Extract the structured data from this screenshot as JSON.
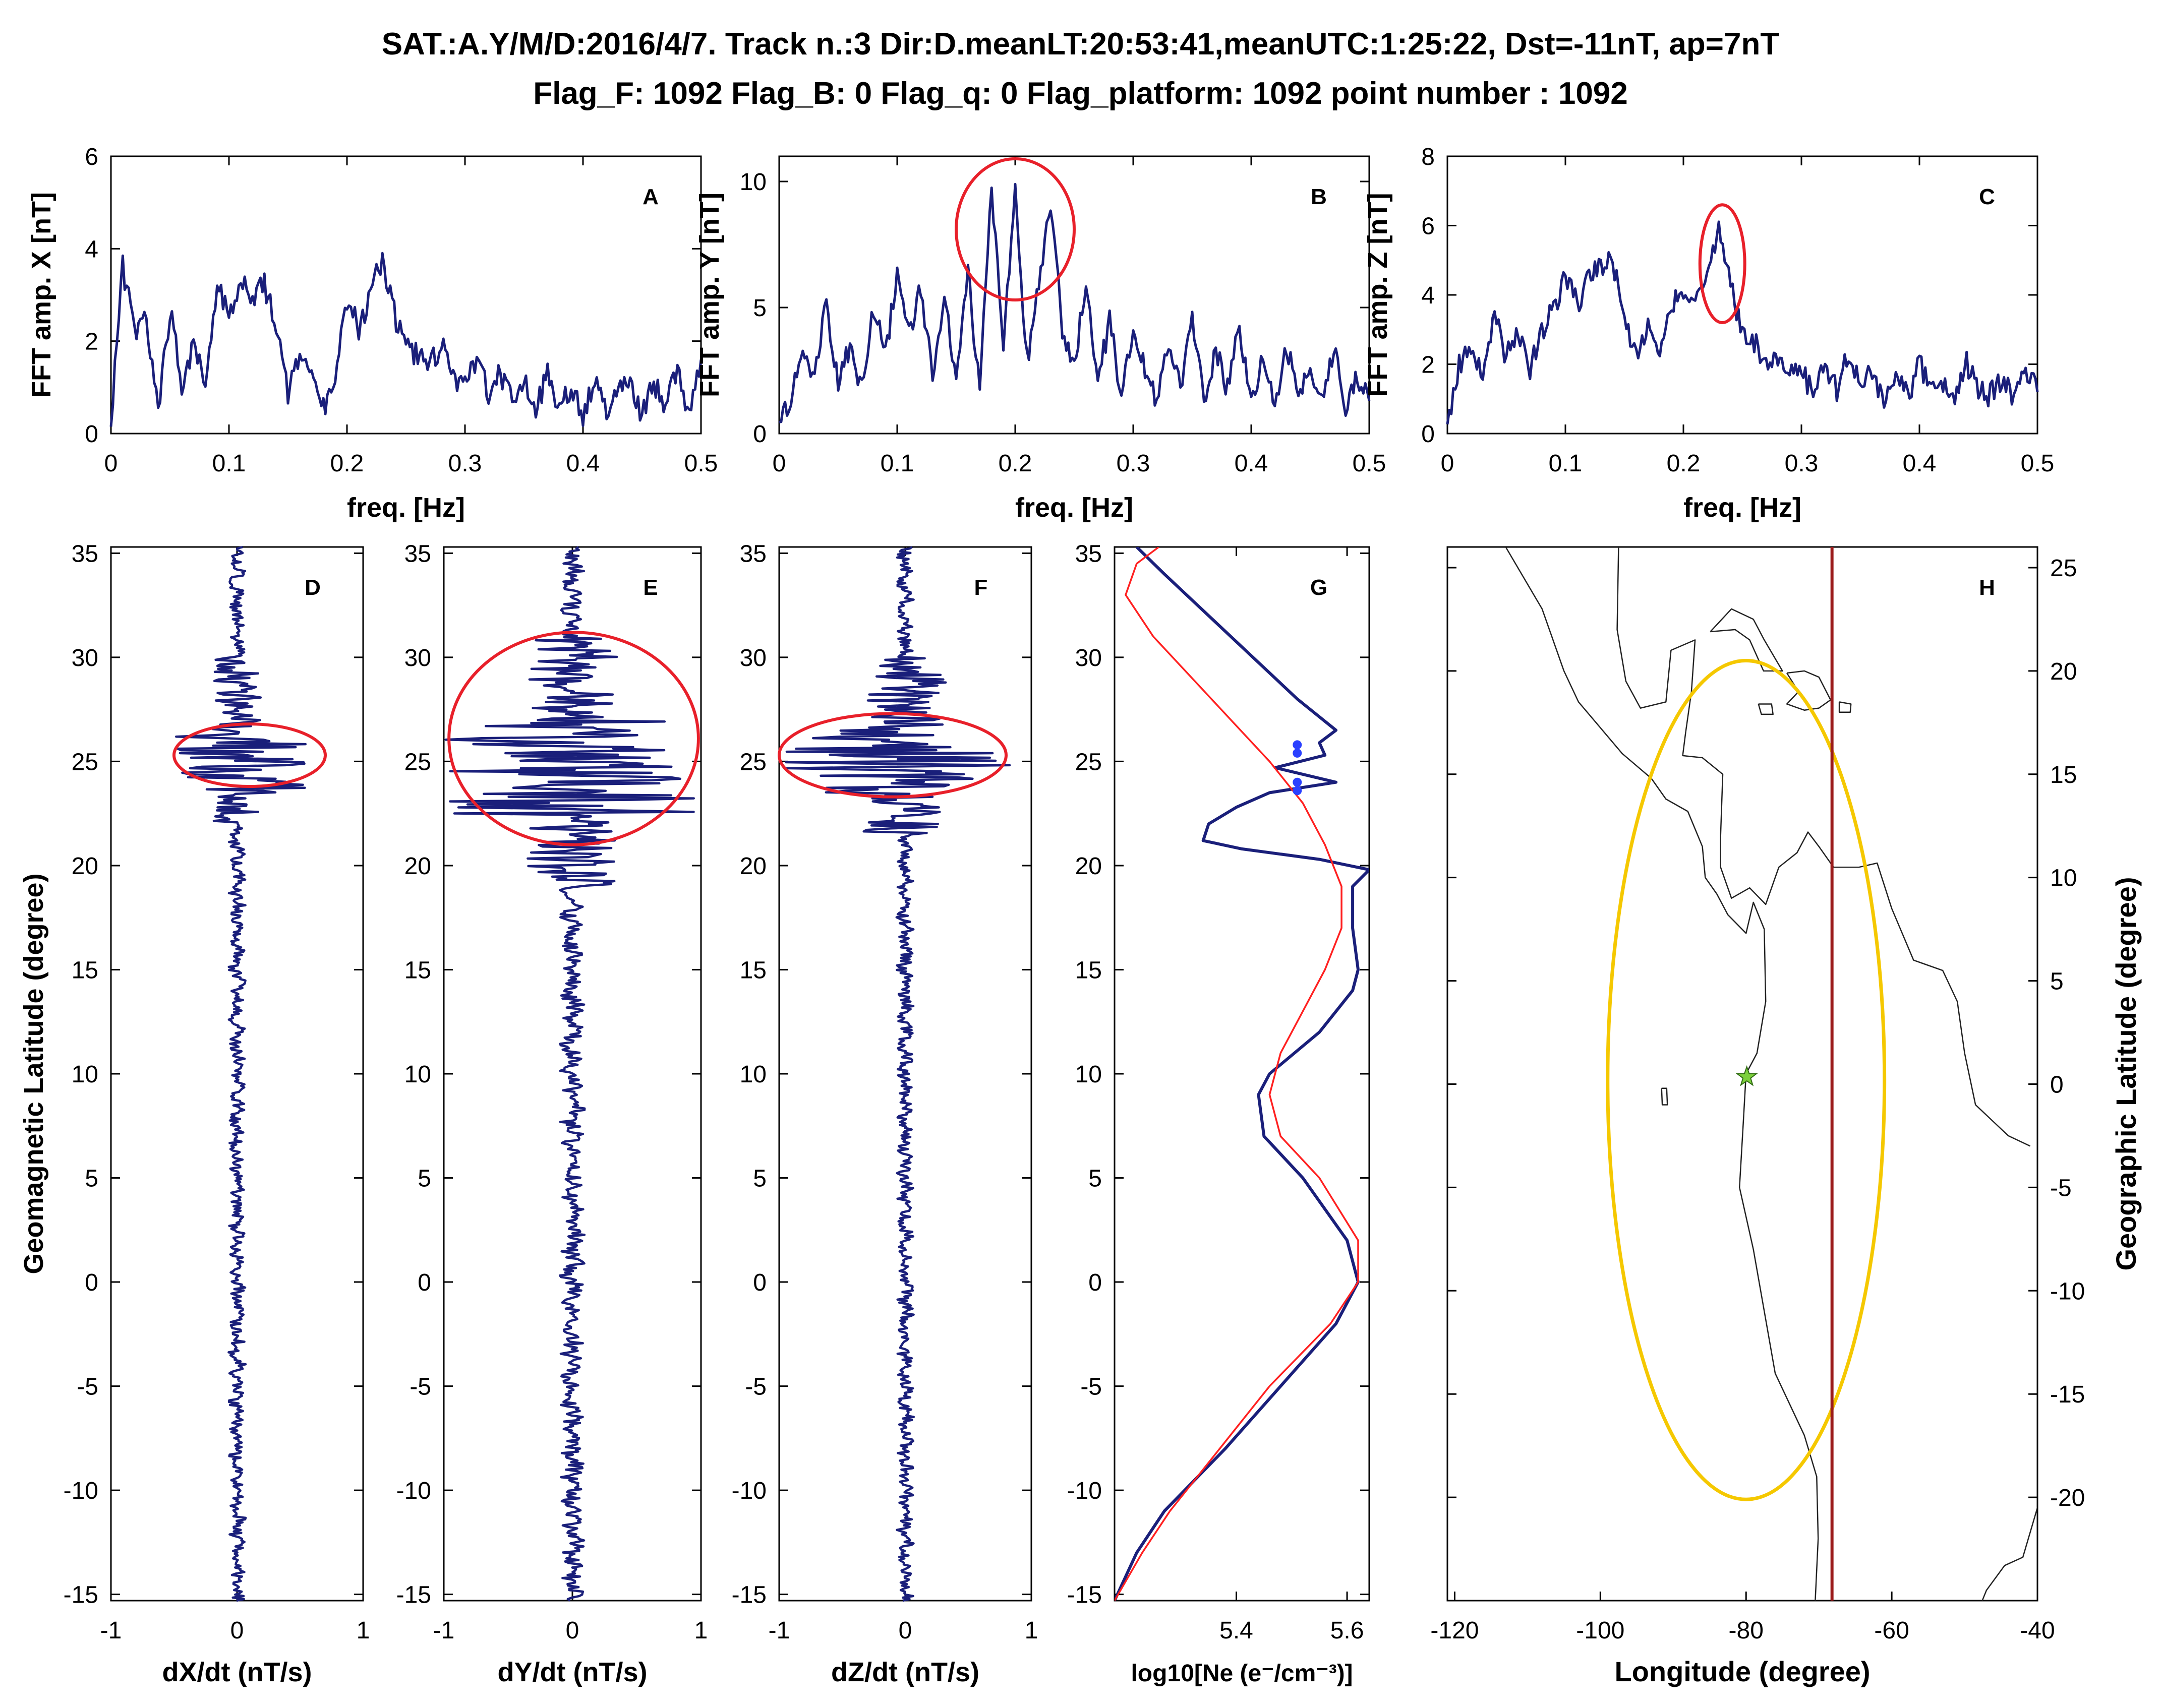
{
  "title_line1": "SAT.:A.Y/M/D:2016/4/7. Track n.:3 Dir:D.meanLT:20:53:41,meanUTC:1:25:22, Dst=-11nT, ap=7nT",
  "title_line2": "Flag_F: 1092 Flag_B: 0 Flag_q: 0 Flag_platform: 1092 point number : 1092",
  "colors": {
    "trace": "#1a1f7a",
    "model": "#ff2020",
    "highlight": "#e8202a",
    "epicenter_zone": "#f5c800",
    "track": "#9b1b1b",
    "coast": "#222222"
  },
  "chart_data": [
    {
      "id": "A",
      "type": "line",
      "panel_label": "A",
      "xlabel": "freq. [Hz]",
      "ylabel": "FFT amp. X [nT]",
      "xlim": [
        0,
        0.5
      ],
      "ylim": [
        0,
        6
      ],
      "xticks": [
        "0",
        "0.1",
        "0.2",
        "0.3",
        "0.4",
        "0.5"
      ],
      "yticks": [
        "0",
        "2",
        "4",
        "6"
      ],
      "x": [
        0,
        0.01,
        0.02,
        0.03,
        0.04,
        0.05,
        0.06,
        0.07,
        0.08,
        0.09,
        0.1,
        0.11,
        0.12,
        0.13,
        0.14,
        0.15,
        0.16,
        0.17,
        0.18,
        0.19,
        0.2,
        0.21,
        0.22,
        0.23,
        0.24,
        0.25,
        0.26,
        0.27,
        0.28,
        0.29,
        0.3,
        0.31,
        0.32,
        0.33,
        0.34,
        0.35,
        0.36,
        0.37,
        0.38,
        0.39,
        0.4,
        0.41,
        0.42,
        0.43,
        0.44,
        0.45,
        0.46,
        0.47,
        0.48,
        0.49,
        0.5
      ],
      "values": [
        0.3,
        3.6,
        2.2,
        2.5,
        0.4,
        2.7,
        1.1,
        1.9,
        1.2,
        3.3,
        2.6,
        3.4,
        3.0,
        3.2,
        2.4,
        0.9,
        1.7,
        1.3,
        0.5,
        1.2,
        2.8,
        2.3,
        3.0,
        3.8,
        2.6,
        1.8,
        1.7,
        1.5,
        1.9,
        1.2,
        1.0,
        1.6,
        0.9,
        1.3,
        0.7,
        1.1,
        0.5,
        1.3,
        0.6,
        1.0,
        0.4,
        1.2,
        0.5,
        0.9,
        1.0,
        0.4,
        1.1,
        0.6,
        1.3,
        0.4,
        1.6
      ]
    },
    {
      "id": "B",
      "type": "line",
      "panel_label": "B",
      "xlabel": "freq. [Hz]",
      "ylabel": "FFT amp. Y [nT]",
      "xlim": [
        0,
        0.5
      ],
      "ylim": [
        0,
        11
      ],
      "xticks": [
        "0",
        "0.1",
        "0.2",
        "0.3",
        "0.4",
        "0.5"
      ],
      "yticks": [
        "0",
        "5",
        "10"
      ],
      "x": [
        0,
        0.01,
        0.02,
        0.03,
        0.04,
        0.05,
        0.06,
        0.07,
        0.08,
        0.09,
        0.1,
        0.11,
        0.12,
        0.13,
        0.14,
        0.15,
        0.16,
        0.17,
        0.18,
        0.19,
        0.2,
        0.21,
        0.22,
        0.23,
        0.24,
        0.25,
        0.26,
        0.27,
        0.28,
        0.29,
        0.3,
        0.31,
        0.32,
        0.33,
        0.34,
        0.35,
        0.36,
        0.37,
        0.38,
        0.39,
        0.4,
        0.41,
        0.42,
        0.43,
        0.44,
        0.45,
        0.46,
        0.47,
        0.48,
        0.49,
        0.5
      ],
      "values": [
        0.2,
        1.5,
        3.0,
        2.5,
        5.2,
        2.0,
        3.5,
        1.8,
        5.0,
        3.0,
        6.3,
        4.0,
        5.8,
        2.5,
        5.6,
        1.9,
        6.3,
        1.8,
        9.9,
        3.5,
        9.6,
        2.8,
        5.8,
        9.2,
        4.0,
        2.6,
        6.0,
        2.1,
        4.5,
        1.6,
        4.3,
        2.5,
        1.2,
        3.8,
        1.7,
        4.5,
        1.2,
        3.2,
        1.8,
        4.2,
        1.3,
        3.0,
        1.0,
        3.5,
        1.5,
        2.6,
        1.2,
        3.5,
        1.0,
        2.2,
        1.3
      ],
      "highlight": {
        "x": 0.2,
        "y": 8.1,
        "rx": 0.05,
        "ry": 2.8
      }
    },
    {
      "id": "C",
      "type": "line",
      "panel_label": "C",
      "xlabel": "freq. [Hz]",
      "ylabel": "FFT amp. Z [nT]",
      "xlim": [
        0,
        0.5
      ],
      "ylim": [
        0,
        8
      ],
      "xticks": [
        "0",
        "0.1",
        "0.2",
        "0.3",
        "0.4",
        "0.5"
      ],
      "yticks": [
        "0",
        "2",
        "4",
        "6",
        "8"
      ],
      "x": [
        0,
        0.01,
        0.02,
        0.03,
        0.04,
        0.05,
        0.06,
        0.07,
        0.08,
        0.09,
        0.1,
        0.11,
        0.12,
        0.13,
        0.14,
        0.15,
        0.16,
        0.17,
        0.18,
        0.19,
        0.2,
        0.21,
        0.22,
        0.23,
        0.24,
        0.25,
        0.26,
        0.27,
        0.28,
        0.29,
        0.3,
        0.31,
        0.32,
        0.33,
        0.34,
        0.35,
        0.36,
        0.37,
        0.38,
        0.39,
        0.4,
        0.41,
        0.42,
        0.43,
        0.44,
        0.45,
        0.46,
        0.47,
        0.48,
        0.49,
        0.5
      ],
      "values": [
        0.3,
        2.0,
        2.6,
        1.6,
        3.3,
        2.2,
        2.8,
        1.8,
        3.0,
        3.6,
        4.6,
        3.7,
        4.6,
        4.8,
        5.1,
        3.2,
        2.2,
        3.0,
        2.5,
        3.8,
        4.2,
        3.6,
        4.5,
        5.9,
        4.2,
        3.0,
        2.6,
        2.0,
        2.2,
        1.6,
        1.8,
        1.1,
        2.0,
        1.3,
        2.3,
        1.4,
        1.8,
        0.8,
        1.9,
        1.0,
        2.1,
        1.2,
        1.5,
        0.8,
        2.0,
        1.3,
        1.1,
        1.6,
        0.9,
        1.8,
        1.2
      ],
      "highlight": {
        "x": 0.233,
        "y": 4.9,
        "rx": 0.019,
        "ry": 1.7
      }
    },
    {
      "id": "D",
      "type": "line",
      "panel_label": "D",
      "xlabel": "dX/dt (nT/s)",
      "ylabel": "Geomagnetic Latitude (degree)",
      "xlim": [
        -1,
        1
      ],
      "ylim": [
        -15.3,
        35.3
      ],
      "xticks": [
        "-1",
        "0",
        "1"
      ],
      "yticks": [
        "35",
        "30",
        "25",
        "20",
        "15",
        "10",
        "5",
        "0",
        "-5",
        "-10",
        "-15"
      ],
      "burst": {
        "lat_range": [
          22,
          30
        ],
        "core": [
          23.5,
          26.5
        ],
        "amp": 0.55
      },
      "noise_amp": 0.05,
      "highlight": {
        "x": 0.1,
        "y": 25.3,
        "rx": 0.6,
        "ry": 1.5
      }
    },
    {
      "id": "E",
      "type": "line",
      "panel_label": "E",
      "xlabel": "dY/dt (nT/s)",
      "ylabel": "",
      "xlim": [
        -1,
        1
      ],
      "ylim": [
        -15.3,
        35.3
      ],
      "xticks": [
        "-1",
        "0",
        "1"
      ],
      "yticks": [
        "35",
        "30",
        "25",
        "20",
        "15",
        "10",
        "5",
        "0",
        "-5",
        "-10",
        "-15"
      ],
      "burst": {
        "lat_range": [
          19,
          31
        ],
        "core": [
          22.5,
          27
        ],
        "amp": 1.0
      },
      "noise_amp": 0.07,
      "highlight": {
        "x": 0.01,
        "y": 26.1,
        "rx": 0.97,
        "ry": 5.1
      }
    },
    {
      "id": "F",
      "type": "line",
      "panel_label": "F",
      "xlabel": "dZ/dt (nT/s)",
      "ylabel": "",
      "xlim": [
        -1,
        1
      ],
      "ylim": [
        -15.3,
        35.3
      ],
      "xticks": [
        "-1",
        "0",
        "1"
      ],
      "yticks": [
        "35",
        "30",
        "25",
        "20",
        "15",
        "10",
        "5",
        "0",
        "-5",
        "-10",
        "-15"
      ],
      "burst": {
        "lat_range": [
          21.5,
          30
        ],
        "core": [
          23.5,
          26.5
        ],
        "amp": 0.95
      },
      "noise_amp": 0.05,
      "highlight": {
        "x": -0.1,
        "y": 25.3,
        "rx": 0.9,
        "ry": 2.0
      }
    },
    {
      "id": "G",
      "type": "line",
      "panel_label": "G",
      "xlabel": "log10[Ne (e⁻/cm⁻³)]",
      "ylabel": "",
      "xlim": [
        5.18,
        5.64
      ],
      "ylim": [
        -15.3,
        35.3
      ],
      "xticks": [
        "5.4",
        "5.6"
      ],
      "yticks": [
        "35",
        "30",
        "25",
        "20",
        "15",
        "10",
        "5",
        "0",
        "-5",
        "-10",
        "-15"
      ],
      "series": [
        {
          "role": "measured",
          "lat": [
            -15.3,
            -13,
            -11,
            -8,
            -5,
            -2,
            0,
            2,
            5,
            7,
            9,
            10,
            12,
            14,
            15,
            17,
            19,
            19.8,
            20.3,
            20.8,
            21.2,
            22,
            22.8,
            23.5,
            24,
            24.7,
            25.3,
            25.9,
            26.5,
            28,
            30,
            32,
            34,
            35.3
          ],
          "ne": [
            5.18,
            5.22,
            5.27,
            5.38,
            5.48,
            5.58,
            5.62,
            5.6,
            5.52,
            5.45,
            5.44,
            5.46,
            5.55,
            5.61,
            5.62,
            5.61,
            5.61,
            5.64,
            5.55,
            5.41,
            5.34,
            5.35,
            5.4,
            5.46,
            5.58,
            5.47,
            5.56,
            5.55,
            5.58,
            5.51,
            5.43,
            5.35,
            5.27,
            5.22
          ]
        },
        {
          "role": "model",
          "lat": [
            -15.3,
            -13,
            -11,
            -8,
            -5,
            -2,
            0,
            2,
            5,
            7,
            9,
            11,
            13,
            15,
            17,
            19,
            21,
            23,
            25,
            27,
            29,
            31,
            33,
            34.5,
            35.3
          ],
          "ne": [
            5.18,
            5.23,
            5.28,
            5.37,
            5.46,
            5.57,
            5.62,
            5.62,
            5.55,
            5.48,
            5.46,
            5.48,
            5.52,
            5.56,
            5.59,
            5.59,
            5.56,
            5.52,
            5.46,
            5.39,
            5.32,
            5.25,
            5.2,
            5.22,
            5.26
          ]
        }
      ],
      "markers": {
        "lat": [
          25.8,
          25.4,
          24.0,
          23.6
        ],
        "ne": [
          5.51,
          5.51,
          5.51,
          5.51
        ]
      }
    },
    {
      "id": "H",
      "type": "map",
      "panel_label": "H",
      "xlabel": "Longitude (degree)",
      "ylabel": "Geographic Latitude (degree)",
      "xlim": [
        -121,
        -40
      ],
      "ylim": [
        -25,
        26
      ],
      "xticks": [
        "-120",
        "-100",
        "-80",
        "-60",
        "-40"
      ],
      "yticks": [
        "25",
        "20",
        "15",
        "10",
        "5",
        "0",
        "-5",
        "-10",
        "-15",
        "-20"
      ],
      "track_longitude": -68.2,
      "epicenter": {
        "lon": -79.9,
        "lat": 0.35
      },
      "preparation_zone": {
        "lon": -80,
        "lat": 0.2,
        "rx": 19,
        "ry": 20.3
      },
      "coastlines": [
        [
          [
            -113,
            26
          ],
          [
            -108,
            23
          ],
          [
            -105,
            20
          ],
          [
            -103,
            18.5
          ],
          [
            -97,
            16
          ],
          [
            -93,
            14.8
          ],
          [
            -91,
            13.8
          ],
          [
            -88,
            13.2
          ],
          [
            -86,
            11.5
          ],
          [
            -85.6,
            10
          ],
          [
            -84,
            9.2
          ],
          [
            -82.5,
            8.2
          ],
          [
            -80,
            7.3
          ],
          [
            -79,
            8.8
          ],
          [
            -77.5,
            7.5
          ],
          [
            -77.3,
            4
          ],
          [
            -78.5,
            1.5
          ],
          [
            -80,
            0.5
          ],
          [
            -80.4,
            -2
          ],
          [
            -80.9,
            -5
          ],
          [
            -79,
            -8
          ],
          [
            -77,
            -12
          ],
          [
            -76,
            -14
          ],
          [
            -72,
            -17
          ],
          [
            -70.3,
            -19
          ],
          [
            -70.1,
            -22
          ],
          [
            -70.5,
            -25
          ]
        ],
        [
          [
            -97.5,
            26
          ],
          [
            -97.7,
            22
          ],
          [
            -96.5,
            19.5
          ],
          [
            -94.5,
            18.2
          ],
          [
            -91,
            18.5
          ],
          [
            -90.3,
            21
          ],
          [
            -87,
            21.5
          ],
          [
            -87.5,
            19
          ],
          [
            -88.3,
            17
          ],
          [
            -88.7,
            15.9
          ],
          [
            -86,
            15.8
          ],
          [
            -83.2,
            15
          ],
          [
            -83.5,
            12
          ],
          [
            -83.5,
            10.5
          ],
          [
            -82,
            9
          ],
          [
            -79.5,
            9.5
          ],
          [
            -77.3,
            8.7
          ],
          [
            -75.5,
            10.5
          ],
          [
            -73,
            11.2
          ],
          [
            -71.5,
            12.2
          ],
          [
            -70,
            11.5
          ],
          [
            -68,
            10.5
          ],
          [
            -64.5,
            10.5
          ],
          [
            -62,
            10.7
          ],
          [
            -60,
            8.5
          ],
          [
            -57,
            6
          ],
          [
            -53,
            5.5
          ],
          [
            -51,
            4
          ],
          [
            -50,
            1.5
          ],
          [
            -48.5,
            -1
          ],
          [
            -44,
            -2.5
          ],
          [
            -41,
            -3
          ]
        ],
        [
          [
            -84.9,
            21.9
          ],
          [
            -82,
            23
          ],
          [
            -79,
            22.5
          ],
          [
            -77.5,
            21.5
          ],
          [
            -75,
            20
          ],
          [
            -77.6,
            20
          ],
          [
            -79.5,
            21.5
          ],
          [
            -81.5,
            22
          ],
          [
            -84.9,
            21.9
          ]
        ],
        [
          [
            -78.3,
            18.4
          ],
          [
            -76.5,
            18.4
          ],
          [
            -76.3,
            17.9
          ],
          [
            -77.9,
            17.9
          ],
          [
            -78.3,
            18.4
          ]
        ],
        [
          [
            -74.4,
            19.9
          ],
          [
            -72,
            20
          ],
          [
            -70,
            19.7
          ],
          [
            -68.4,
            18.6
          ],
          [
            -70,
            18.2
          ],
          [
            -72,
            18.1
          ],
          [
            -74.4,
            18.4
          ],
          [
            -72.8,
            19
          ],
          [
            -74.4,
            19.9
          ]
        ],
        [
          [
            -67.2,
            18.5
          ],
          [
            -65.6,
            18.4
          ],
          [
            -65.7,
            18
          ],
          [
            -67.2,
            18
          ],
          [
            -67.2,
            18.5
          ]
        ],
        [
          [
            -91.6,
            -0.2
          ],
          [
            -90.9,
            -0.2
          ],
          [
            -90.8,
            -1
          ],
          [
            -91.5,
            -1
          ],
          [
            -91.6,
            -0.2
          ]
        ],
        [
          [
            -40,
            -20.5
          ],
          [
            -42,
            -22.9
          ],
          [
            -44.5,
            -23.3
          ],
          [
            -47,
            -24.5
          ],
          [
            -48.5,
            -25.8
          ]
        ]
      ]
    }
  ]
}
